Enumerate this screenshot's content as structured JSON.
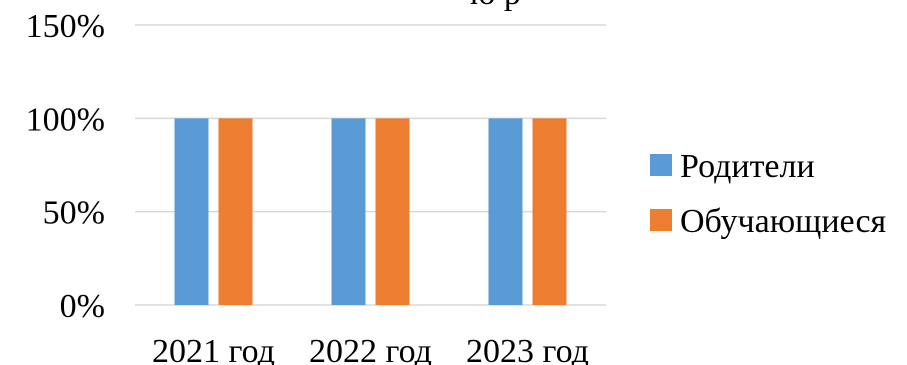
{
  "chart_data": {
    "type": "bar",
    "title_fragment": "ю р",
    "categories": [
      "2021 год",
      "2022 год",
      "2023 год"
    ],
    "series": [
      {
        "name": "Родители",
        "values": [
          100,
          100,
          100
        ],
        "color": "#5B9BD5"
      },
      {
        "name": "Обучающиеся",
        "values": [
          100,
          100,
          100
        ],
        "color": "#ED7D31"
      }
    ],
    "y_ticks": [
      "0%",
      "50%",
      "100%",
      "150%"
    ],
    "ylim": [
      0,
      150
    ],
    "grid": true,
    "legend_position": "right"
  }
}
